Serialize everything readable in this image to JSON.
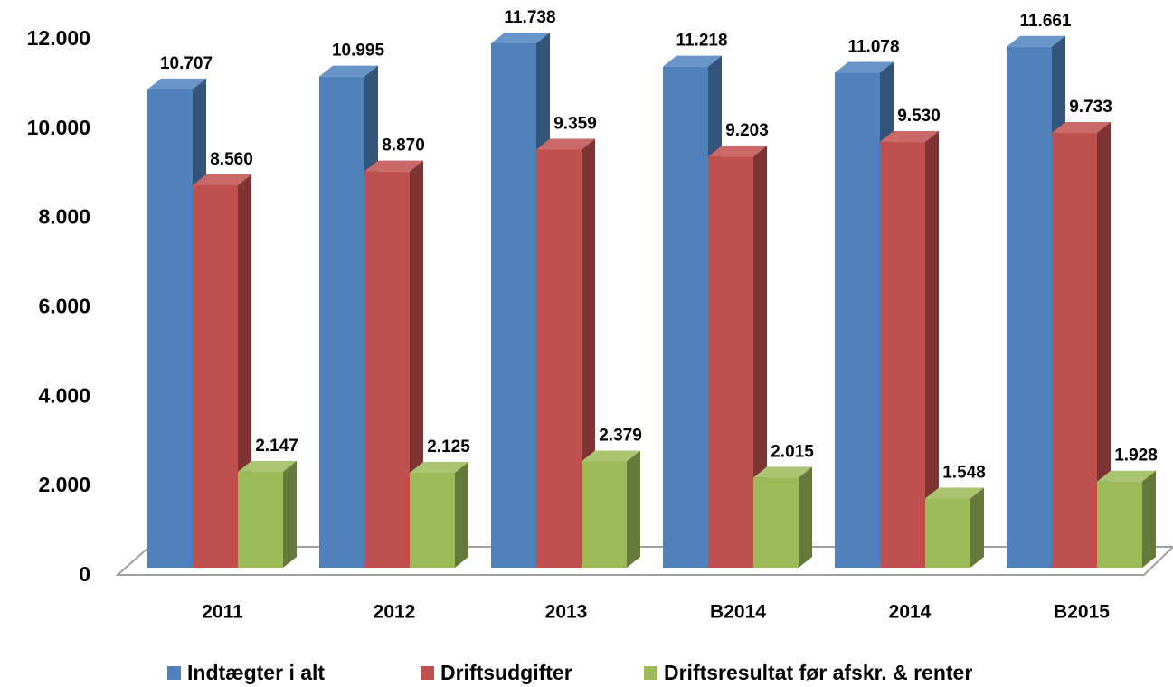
{
  "chart_data": {
    "type": "bar3d",
    "categories": [
      "2011",
      "2012",
      "2013",
      "B2014",
      "2014",
      "B2015"
    ],
    "series": [
      {
        "name": "Indtægter i alt",
        "color": "#4f81bd",
        "values": [
          10707,
          10995,
          11738,
          11218,
          11078,
          11661
        ],
        "value_labels": [
          "10.707",
          "10.995",
          "11.738",
          "11.218",
          "11.078",
          "11.661"
        ]
      },
      {
        "name": "Driftsudgifter",
        "color": "#c0504d",
        "values": [
          8560,
          8870,
          9359,
          9203,
          9530,
          9733
        ],
        "value_labels": [
          "8.560",
          "8.870",
          "9.359",
          "9.203",
          "9.530",
          "9.733"
        ]
      },
      {
        "name": "Driftsresultat før afskr. & renter",
        "color": "#9bbb59",
        "values": [
          2147,
          2125,
          2379,
          2015,
          1548,
          1928
        ],
        "value_labels": [
          "2.147",
          "2.125",
          "2.379",
          "2.015",
          "1.548",
          "1.928"
        ]
      }
    ],
    "ylim": [
      0,
      12000
    ],
    "yticks": [
      0,
      {
        "value": 2000,
        "label": "2.000"
      },
      {
        "value": 4000,
        "label": "4.000"
      },
      {
        "value": 6000,
        "label": "6.000"
      },
      {
        "value": 8000,
        "label": "8.000"
      },
      {
        "value": 10000,
        "label": "10.000"
      },
      {
        "value": 12000,
        "label": "12.000"
      }
    ],
    "grid": false,
    "legend": "bottom"
  }
}
